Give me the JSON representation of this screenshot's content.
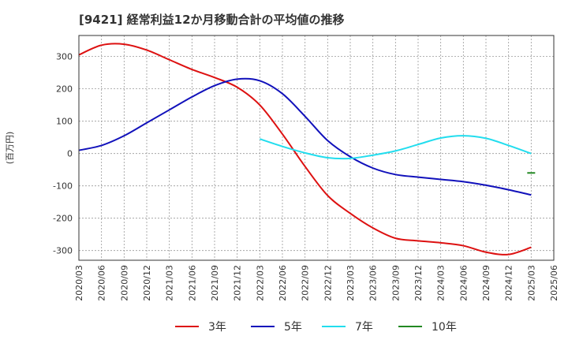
{
  "chart_data": {
    "type": "line",
    "title": "[9421]  経常利益12か月移動合計の平均値の推移",
    "ylabel": "(百万円)",
    "xlabel": "",
    "ylim": [
      -330,
      365
    ],
    "y_ticks": [
      300,
      200,
      100,
      0,
      -100,
      -200,
      -300
    ],
    "categories": [
      "2020/03",
      "2020/06",
      "2020/09",
      "2020/12",
      "2021/03",
      "2021/06",
      "2021/09",
      "2021/12",
      "2022/03",
      "2022/06",
      "2022/09",
      "2022/12",
      "2023/03",
      "2023/06",
      "2023/09",
      "2023/12",
      "2024/03",
      "2024/06",
      "2024/09",
      "2024/12",
      "2025/03",
      "2025/06"
    ],
    "grid": true,
    "legend_position": "bottom",
    "series": [
      {
        "name": "3年",
        "color": "#dd1111",
        "values": [
          305,
          335,
          338,
          320,
          290,
          260,
          235,
          205,
          150,
          60,
          -40,
          -130,
          -185,
          -230,
          -262,
          -270,
          -276,
          -285,
          -305,
          -312,
          -290,
          null
        ]
      },
      {
        "name": "5年",
        "color": "#1111bb",
        "values": [
          10,
          25,
          55,
          95,
          135,
          175,
          210,
          230,
          225,
          185,
          115,
          40,
          -10,
          -45,
          -65,
          -73,
          -80,
          -87,
          -98,
          -112,
          -128,
          null
        ]
      },
      {
        "name": "7年",
        "color": "#22ddee",
        "values": [
          null,
          null,
          null,
          null,
          null,
          null,
          null,
          null,
          45,
          22,
          2,
          -13,
          -15,
          -5,
          8,
          28,
          48,
          55,
          47,
          25,
          0,
          null
        ]
      },
      {
        "name": "10年",
        "color": "#228822",
        "values": [
          null,
          null,
          null,
          null,
          null,
          null,
          null,
          null,
          null,
          null,
          null,
          null,
          null,
          null,
          null,
          null,
          null,
          null,
          null,
          null,
          -60,
          null
        ]
      }
    ]
  }
}
